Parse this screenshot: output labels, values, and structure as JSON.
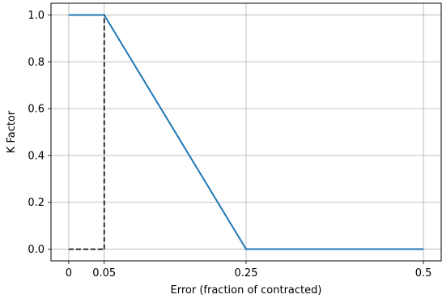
{
  "chart_data": {
    "type": "line",
    "title": "",
    "xlabel": "Error (fraction of contracted)",
    "ylabel": "K Factor",
    "xlim": [
      -0.025,
      0.525
    ],
    "ylim": [
      -0.05,
      1.05
    ],
    "grid": true,
    "x_ticks": [
      {
        "value": 0,
        "label": "0"
      },
      {
        "value": 0.05,
        "label": "0.05"
      },
      {
        "value": 0.25,
        "label": "0.25"
      },
      {
        "value": 0.5,
        "label": "0.5"
      }
    ],
    "y_ticks": [
      {
        "value": 0.0,
        "label": "0.0"
      },
      {
        "value": 0.2,
        "label": "0.2"
      },
      {
        "value": 0.4,
        "label": "0.4"
      },
      {
        "value": 0.6,
        "label": "0.6"
      },
      {
        "value": 0.8,
        "label": "0.8"
      },
      {
        "value": 1.0,
        "label": "1.0"
      }
    ],
    "series": [
      {
        "style": "solid",
        "color": "#1f77b4",
        "x": [
          0,
          0.05,
          0.25,
          0.5
        ],
        "y": [
          1.0,
          1.0,
          0.0,
          0.0
        ]
      },
      {
        "style": "dashed",
        "color": "#000000",
        "x": [
          0.05,
          0.05
        ],
        "y": [
          0.0,
          1.0
        ]
      },
      {
        "style": "dashed",
        "color": "#000000",
        "x": [
          0,
          0.05
        ],
        "y": [
          0.0,
          0.0
        ]
      }
    ]
  }
}
